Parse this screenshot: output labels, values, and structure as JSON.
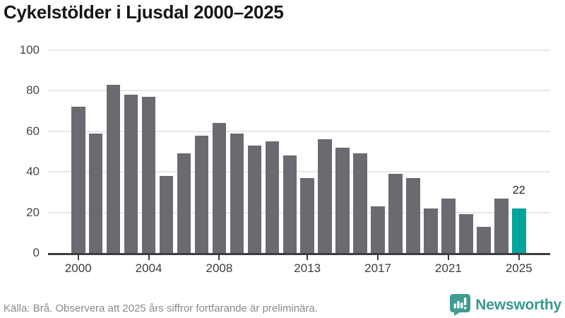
{
  "title": "Cykelstölder i Ljusdal 2000–2025",
  "chart_data": {
    "type": "bar",
    "title": "Cykelstölder i Ljusdal 2000–2025",
    "xlabel": "",
    "ylabel": "",
    "categories": [
      "2000",
      "2001",
      "2002",
      "2003",
      "2004",
      "2005",
      "2006",
      "2007",
      "2008",
      "2009",
      "2010",
      "2011",
      "2012",
      "2013",
      "2014",
      "2015",
      "2016",
      "2017",
      "2018",
      "2019",
      "2020",
      "2021",
      "2022",
      "2023",
      "2024",
      "2025"
    ],
    "values": [
      72,
      59,
      83,
      78,
      77,
      38,
      49,
      58,
      64,
      59,
      53,
      55,
      48,
      37,
      56,
      52,
      49,
      23,
      39,
      37,
      22,
      27,
      19,
      13,
      27,
      22
    ],
    "ylim": [
      0,
      100
    ],
    "yticks": [
      0,
      20,
      40,
      60,
      80,
      100
    ],
    "xticks": [
      "2000",
      "2004",
      "2008",
      "2013",
      "2017",
      "2021",
      "2025"
    ],
    "grid": true,
    "legend": false,
    "bar_color": "#6b6a70",
    "highlight_category": "2025",
    "highlight_color": "#00a49b",
    "annotation": {
      "category": "2025",
      "text": "22"
    }
  },
  "footer": {
    "source_note": "Källa: Brå. Observera att 2025 års siffror fortfarande är preliminära.",
    "brand_name": "Newsworthy",
    "brand_color": "#38998c"
  },
  "colors": {
    "accent_teal": "#00a49b",
    "bar_gray": "#6b6a70",
    "gridline": "#e8e8e8",
    "axis": "#3d3d3d",
    "title_text": "#161616",
    "source_text": "#8b8b8b",
    "logo_teal": "#3e9c90"
  }
}
